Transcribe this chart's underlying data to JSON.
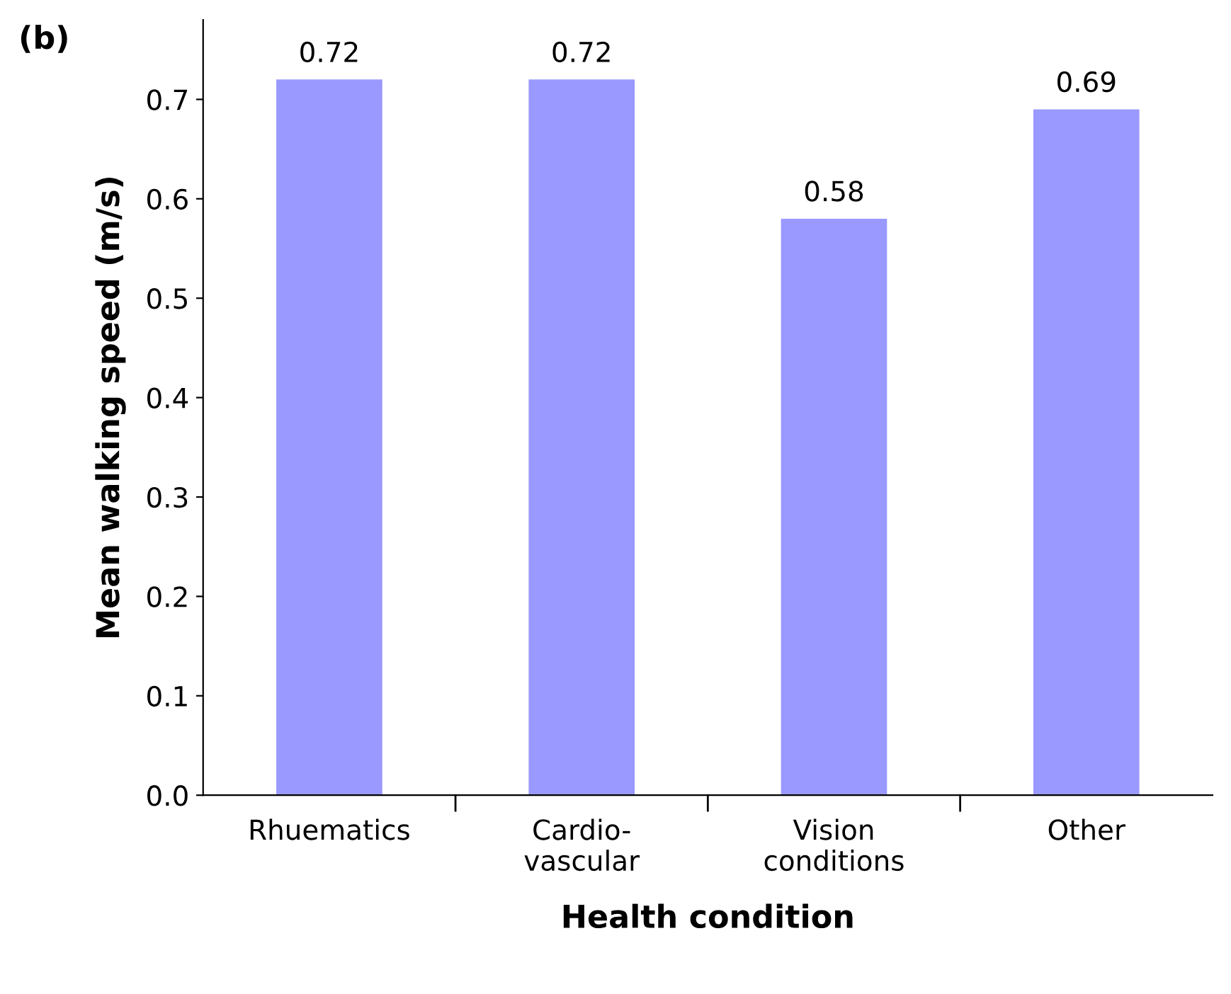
{
  "chart_data": {
    "type": "bar",
    "xlabel": "Health condition",
    "ylabel": "Mean walking speed (m/s)",
    "annotations": [
      "(b)"
    ],
    "categories": [
      "Rhuematics",
      "Cardio-\nvascular",
      "Vision\nconditions",
      "Other"
    ],
    "values": [
      0.72,
      0.72,
      0.58,
      0.69
    ],
    "color": "#9999ff",
    "ylim": [
      0,
      0.78
    ],
    "yticks": [
      {
        "value": 0,
        "label": "0.0"
      },
      0.1,
      0.2,
      0.3,
      0.4,
      0.5,
      0.6,
      0.7
    ],
    "data_labels": true,
    "grid": false,
    "legend": false
  }
}
